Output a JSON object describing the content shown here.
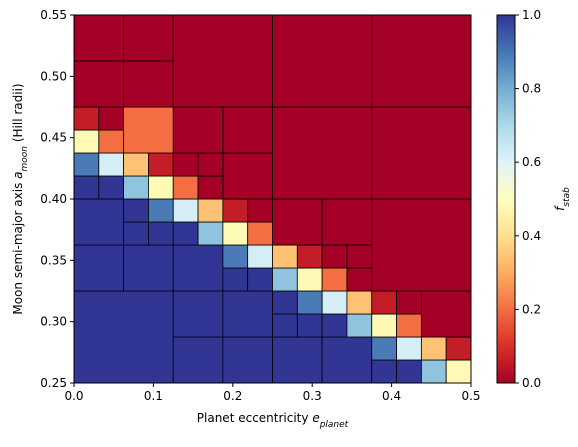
{
  "chart_data": {
    "type": "heatmap",
    "xlabel": [
      {
        "text": "Planet eccentricity "
      },
      {
        "text": "e",
        "style": "italic"
      },
      {
        "text": "planet",
        "style": "italic-sub"
      }
    ],
    "ylabel": [
      {
        "text": "Moon semi-major axis "
      },
      {
        "text": "a",
        "style": "italic"
      },
      {
        "text": "moon",
        "style": "italic-sub"
      },
      {
        "text": " (Hill radii)"
      }
    ],
    "colorbar_label": [
      {
        "text": "f",
        "style": "italic"
      },
      {
        "text": "stab",
        "style": "italic-sub"
      }
    ],
    "xlim": [
      0,
      0.5
    ],
    "ylim": [
      0.25,
      0.55
    ],
    "clim": [
      0,
      1
    ],
    "xticks": [
      {
        "value": 0,
        "label": "0.0"
      },
      0.1,
      0.2,
      0.3,
      0.4,
      0.5
    ],
    "yticks": [
      0.25,
      {
        "value": 0.3,
        "label": "0.30"
      },
      0.35,
      {
        "value": 0.4,
        "label": "0.40"
      },
      0.45,
      {
        "value": 0.5,
        "label": "0.50"
      },
      0.55
    ],
    "cticks": [
      {
        "value": 0,
        "label": "0.0"
      },
      {
        "value": 0.2,
        "label": "0.2"
      },
      {
        "value": 0.4,
        "label": "0.4"
      },
      {
        "value": 0.6,
        "label": "0.6"
      },
      {
        "value": 0.8,
        "label": "0.8"
      },
      {
        "value": 1,
        "label": "1.0"
      }
    ],
    "colormap": [
      "#a50026",
      "#d73027",
      "#f46d43",
      "#fdae61",
      "#fee090",
      "#ffffbf",
      "#e0f3f8",
      "#abd9e9",
      "#74add1",
      "#4575b4",
      "#313695"
    ],
    "cells": [
      [
        0,
        0.25,
        0.125,
        0.325,
        1
      ],
      [
        0,
        0.325,
        0.0625,
        0.3625,
        1
      ],
      [
        0,
        0.3625,
        0.0625,
        0.4,
        1
      ],
      [
        0.0625,
        0.325,
        0.125,
        0.3625,
        1
      ],
      [
        0.0625,
        0.3625,
        0.09375,
        0.38125,
        1
      ],
      [
        0.0625,
        0.38125,
        0.09375,
        0.4,
        1
      ],
      [
        0.09375,
        0.3625,
        0.125,
        0.38125,
        1
      ],
      [
        0.09375,
        0.38125,
        0.125,
        0.4,
        0.89
      ],
      [
        0,
        0.4,
        0.03125,
        0.41875,
        1
      ],
      [
        0,
        0.41875,
        0.03125,
        0.4375,
        0.89
      ],
      [
        0.03125,
        0.4,
        0.0625,
        0.41875,
        1
      ],
      [
        0.03125,
        0.41875,
        0.0625,
        0.4375,
        0.62
      ],
      [
        0,
        0.4375,
        0.03125,
        0.45625,
        0.48
      ],
      [
        0,
        0.45625,
        0.03125,
        0.475,
        0.06
      ],
      [
        0.03125,
        0.4375,
        0.0625,
        0.45625,
        0.2
      ],
      [
        0.03125,
        0.45625,
        0.0625,
        0.475,
        0
      ],
      [
        0.0625,
        0.4,
        0.09375,
        0.41875,
        0.75
      ],
      [
        0.0625,
        0.41875,
        0.09375,
        0.4375,
        0.34
      ],
      [
        0.09375,
        0.4,
        0.125,
        0.41875,
        0.48
      ],
      [
        0.09375,
        0.41875,
        0.125,
        0.4375,
        0.06
      ],
      [
        0.0625,
        0.4375,
        0.125,
        0.475,
        0.2
      ],
      [
        0,
        0.475,
        0.0625,
        0.5125,
        0
      ],
      [
        0.0625,
        0.475,
        0.125,
        0.5125,
        0
      ],
      [
        0,
        0.5125,
        0.0625,
        0.55,
        0
      ],
      [
        0.0625,
        0.5125,
        0.125,
        0.55,
        0
      ],
      [
        0.125,
        0.25,
        0.1875,
        0.2875,
        1
      ],
      [
        0.1875,
        0.25,
        0.25,
        0.2875,
        1
      ],
      [
        0.125,
        0.2875,
        0.1875,
        0.325,
        1
      ],
      [
        0.1875,
        0.2875,
        0.25,
        0.325,
        1
      ],
      [
        0.125,
        0.325,
        0.1875,
        0.3625,
        1
      ],
      [
        0.125,
        0.3625,
        0.15625,
        0.38125,
        1
      ],
      [
        0.125,
        0.38125,
        0.15625,
        0.4,
        0.62
      ],
      [
        0.15625,
        0.3625,
        0.1875,
        0.38125,
        0.75
      ],
      [
        0.15625,
        0.38125,
        0.1875,
        0.4,
        0.34
      ],
      [
        0.1875,
        0.325,
        0.21875,
        0.34375,
        1
      ],
      [
        0.1875,
        0.34375,
        0.21875,
        0.3625,
        0.89
      ],
      [
        0.21875,
        0.325,
        0.25,
        0.34375,
        1
      ],
      [
        0.21875,
        0.34375,
        0.25,
        0.3625,
        0.62
      ],
      [
        0.1875,
        0.3625,
        0.21875,
        0.38125,
        0.48
      ],
      [
        0.1875,
        0.38125,
        0.21875,
        0.4,
        0.06
      ],
      [
        0.21875,
        0.3625,
        0.25,
        0.38125,
        0.2
      ],
      [
        0.21875,
        0.38125,
        0.25,
        0.4,
        0
      ],
      [
        0.125,
        0.4,
        0.15625,
        0.41875,
        0.2
      ],
      [
        0.125,
        0.41875,
        0.15625,
        0.4375,
        0
      ],
      [
        0.15625,
        0.4,
        0.1875,
        0.41875,
        0
      ],
      [
        0.15625,
        0.41875,
        0.1875,
        0.4375,
        0
      ],
      [
        0.125,
        0.4375,
        0.1875,
        0.475,
        0
      ],
      [
        0.1875,
        0.4,
        0.25,
        0.4375,
        0
      ],
      [
        0.1875,
        0.4375,
        0.25,
        0.475,
        0
      ],
      [
        0.125,
        0.475,
        0.25,
        0.55,
        0
      ],
      [
        0.25,
        0.25,
        0.3125,
        0.2875,
        1
      ],
      [
        0.25,
        0.2875,
        0.28125,
        0.30625,
        1
      ],
      [
        0.25,
        0.30625,
        0.28125,
        0.325,
        1
      ],
      [
        0.28125,
        0.2875,
        0.3125,
        0.30625,
        1
      ],
      [
        0.28125,
        0.30625,
        0.3125,
        0.325,
        0.89
      ],
      [
        0.3125,
        0.25,
        0.375,
        0.2875,
        1
      ],
      [
        0.3125,
        0.2875,
        0.34375,
        0.30625,
        1
      ],
      [
        0.3125,
        0.30625,
        0.34375,
        0.325,
        0.62
      ],
      [
        0.34375,
        0.2875,
        0.375,
        0.30625,
        0.75
      ],
      [
        0.34375,
        0.30625,
        0.375,
        0.325,
        0.34
      ],
      [
        0.25,
        0.325,
        0.28125,
        0.34375,
        0.75
      ],
      [
        0.25,
        0.34375,
        0.28125,
        0.3625,
        0.34
      ],
      [
        0.28125,
        0.325,
        0.3125,
        0.34375,
        0.48
      ],
      [
        0.28125,
        0.34375,
        0.3125,
        0.3625,
        0.06
      ],
      [
        0.25,
        0.3625,
        0.3125,
        0.4,
        0
      ],
      [
        0.3125,
        0.325,
        0.34375,
        0.34375,
        0.2
      ],
      [
        0.3125,
        0.34375,
        0.34375,
        0.3625,
        0
      ],
      [
        0.34375,
        0.325,
        0.375,
        0.34375,
        0
      ],
      [
        0.34375,
        0.34375,
        0.375,
        0.3625,
        0
      ],
      [
        0.3125,
        0.3625,
        0.375,
        0.4,
        0
      ],
      [
        0.25,
        0.4,
        0.375,
        0.475,
        0
      ],
      [
        0.25,
        0.475,
        0.375,
        0.55,
        0
      ],
      [
        0.375,
        0.25,
        0.40625,
        0.26875,
        1
      ],
      [
        0.375,
        0.26875,
        0.40625,
        0.2875,
        0.89
      ],
      [
        0.40625,
        0.25,
        0.4375,
        0.26875,
        1
      ],
      [
        0.40625,
        0.26875,
        0.4375,
        0.2875,
        0.62
      ],
      [
        0.375,
        0.2875,
        0.40625,
        0.30625,
        0.48
      ],
      [
        0.375,
        0.30625,
        0.40625,
        0.325,
        0.06
      ],
      [
        0.40625,
        0.2875,
        0.4375,
        0.30625,
        0.2
      ],
      [
        0.40625,
        0.30625,
        0.4375,
        0.325,
        0
      ],
      [
        0.4375,
        0.25,
        0.46875,
        0.26875,
        0.75
      ],
      [
        0.4375,
        0.26875,
        0.46875,
        0.2875,
        0.34
      ],
      [
        0.46875,
        0.25,
        0.5,
        0.26875,
        0.48
      ],
      [
        0.46875,
        0.26875,
        0.5,
        0.2875,
        0.06
      ],
      [
        0.4375,
        0.2875,
        0.5,
        0.325,
        0
      ],
      [
        0.375,
        0.325,
        0.5,
        0.4,
        0
      ],
      [
        0.375,
        0.4,
        0.5,
        0.475,
        0
      ],
      [
        0.375,
        0.475,
        0.5,
        0.55,
        0
      ]
    ]
  }
}
